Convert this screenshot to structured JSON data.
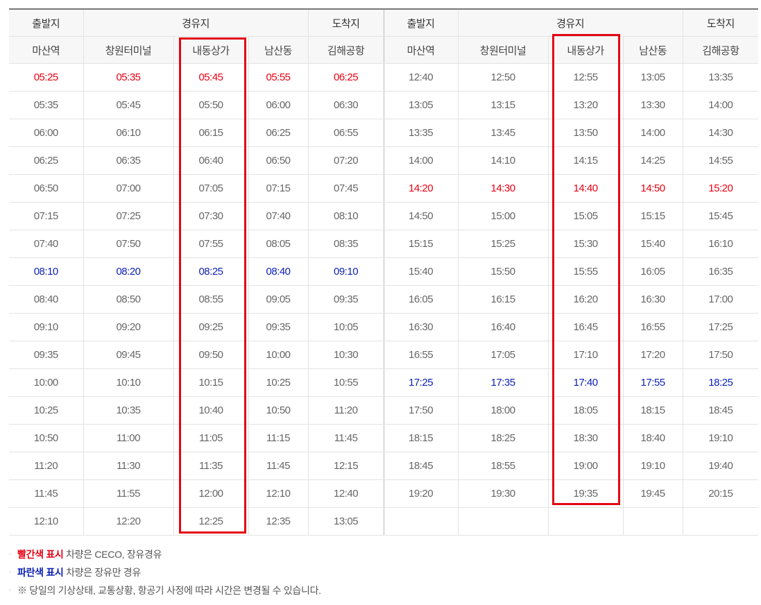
{
  "headers": {
    "groups": [
      "출발지",
      "경유지",
      "도착지",
      "출발지",
      "경유지",
      "도착지"
    ],
    "stops": [
      "마산역",
      "창원터미널",
      "내동상가",
      "남산동",
      "김해공항",
      "마산역",
      "창원터미널",
      "내동상가",
      "남산동",
      "김해공항"
    ]
  },
  "left_rows": [
    {
      "times": [
        "05:25",
        "05:35",
        "05:45",
        "05:55",
        "06:25"
      ],
      "style": "red"
    },
    {
      "times": [
        "05:35",
        "05:45",
        "05:50",
        "06:00",
        "06:30"
      ],
      "style": ""
    },
    {
      "times": [
        "06:00",
        "06:10",
        "06:15",
        "06:25",
        "06:55"
      ],
      "style": ""
    },
    {
      "times": [
        "06:25",
        "06:35",
        "06:40",
        "06:50",
        "07:20"
      ],
      "style": ""
    },
    {
      "times": [
        "06:50",
        "07:00",
        "07:05",
        "07:15",
        "07:45"
      ],
      "style": ""
    },
    {
      "times": [
        "07:15",
        "07:25",
        "07:30",
        "07:40",
        "08:10"
      ],
      "style": ""
    },
    {
      "times": [
        "07:40",
        "07:50",
        "07:55",
        "08:05",
        "08:35"
      ],
      "style": ""
    },
    {
      "times": [
        "08:10",
        "08:20",
        "08:25",
        "08:40",
        "09:10"
      ],
      "style": "blue"
    },
    {
      "times": [
        "08:40",
        "08:50",
        "08:55",
        "09:05",
        "09:35"
      ],
      "style": ""
    },
    {
      "times": [
        "09:10",
        "09:20",
        "09:25",
        "09:35",
        "10:05"
      ],
      "style": ""
    },
    {
      "times": [
        "09:35",
        "09:45",
        "09:50",
        "10:00",
        "10:30"
      ],
      "style": ""
    },
    {
      "times": [
        "10:00",
        "10:10",
        "10:15",
        "10:25",
        "10:55"
      ],
      "style": ""
    },
    {
      "times": [
        "10:25",
        "10:35",
        "10:40",
        "10:50",
        "11:20"
      ],
      "style": ""
    },
    {
      "times": [
        "10:50",
        "11:00",
        "11:05",
        "11:15",
        "11:45"
      ],
      "style": ""
    },
    {
      "times": [
        "11:20",
        "11:30",
        "11:35",
        "11:45",
        "12:15"
      ],
      "style": ""
    },
    {
      "times": [
        "11:45",
        "11:55",
        "12:00",
        "12:10",
        "12:40"
      ],
      "style": ""
    },
    {
      "times": [
        "12:10",
        "12:20",
        "12:25",
        "12:35",
        "13:05"
      ],
      "style": ""
    }
  ],
  "right_rows": [
    {
      "times": [
        "12:40",
        "12:50",
        "12:55",
        "13:05",
        "13:35"
      ],
      "style": ""
    },
    {
      "times": [
        "13:05",
        "13:15",
        "13:20",
        "13:30",
        "14:00"
      ],
      "style": ""
    },
    {
      "times": [
        "13:35",
        "13:45",
        "13:50",
        "14:00",
        "14:30"
      ],
      "style": ""
    },
    {
      "times": [
        "14:00",
        "14:10",
        "14:15",
        "14:25",
        "14:55"
      ],
      "style": ""
    },
    {
      "times": [
        "14:20",
        "14:30",
        "14:40",
        "14:50",
        "15:20"
      ],
      "style": "red"
    },
    {
      "times": [
        "14:50",
        "15:00",
        "15:05",
        "15:15",
        "15:45"
      ],
      "style": ""
    },
    {
      "times": [
        "15:15",
        "15:25",
        "15:30",
        "15:40",
        "16:10"
      ],
      "style": ""
    },
    {
      "times": [
        "15:40",
        "15:50",
        "15:55",
        "16:05",
        "16:35"
      ],
      "style": ""
    },
    {
      "times": [
        "16:05",
        "16:15",
        "16:20",
        "16:30",
        "17:00"
      ],
      "style": ""
    },
    {
      "times": [
        "16:30",
        "16:40",
        "16:45",
        "16:55",
        "17:25"
      ],
      "style": ""
    },
    {
      "times": [
        "16:55",
        "17:05",
        "17:10",
        "17:20",
        "17:50"
      ],
      "style": ""
    },
    {
      "times": [
        "17:25",
        "17:35",
        "17:40",
        "17:55",
        "18:25"
      ],
      "style": "blue"
    },
    {
      "times": [
        "17:50",
        "18:00",
        "18:05",
        "18:15",
        "18:45"
      ],
      "style": ""
    },
    {
      "times": [
        "18:15",
        "18:25",
        "18:30",
        "18:40",
        "19:10"
      ],
      "style": ""
    },
    {
      "times": [
        "18:45",
        "18:55",
        "19:00",
        "19:10",
        "19:40"
      ],
      "style": ""
    },
    {
      "times": [
        "19:20",
        "19:30",
        "19:35",
        "19:45",
        "20:15"
      ],
      "style": ""
    },
    {
      "times": [
        "",
        "",
        "",
        "",
        ""
      ],
      "style": ""
    }
  ],
  "notes": [
    {
      "highlight": "빨간색 표시",
      "text": " 차량은 CECO, 장유경유",
      "color": "red"
    },
    {
      "highlight": "파란색 표시",
      "text": " 차량은 장유만 경유",
      "color": "blue"
    },
    {
      "highlight": "",
      "text": "※ 당일의 기상상태, 교통상황, 항공기 사정에 따라 시간은 변경될 수 있습니다.",
      "color": ""
    }
  ],
  "colors": {
    "red": "#e60012",
    "blue": "#0a1fb4",
    "highlight_box": "#e30613"
  }
}
